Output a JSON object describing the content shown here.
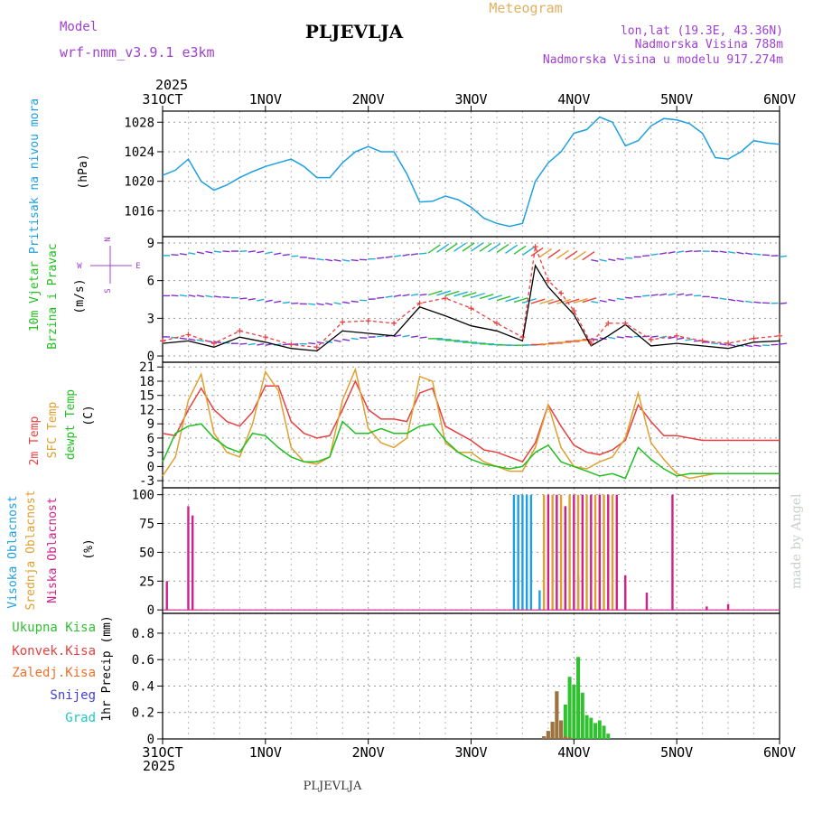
{
  "header": {
    "model_label": "Model",
    "model_name": "wrf-nmm_v3.9.1  e3km",
    "station": "PLJEVLJA",
    "meteogram_label": "Meteogram",
    "lonlat": "lon,lat (19.3E, 43.36N)",
    "altitude": "Nadmorska Visina 788m",
    "model_altitude": "Nadmorska Visina u modelu 917.274m",
    "footer_station": "PLJEVLJA",
    "credit": "made by Angel"
  },
  "colors": {
    "pressure": "#1ea0e0",
    "temp2m": "#e84040",
    "sfc": "#e0a030",
    "dewpt": "#20c020",
    "high": "#1ea0e0",
    "mid": "#e0a030",
    "low": "#d0208a",
    "precip_total": "#30c030",
    "precip_conv": "#e84040",
    "precip_frz": "#f07028",
    "snow": "#4040d8",
    "grad": "#20c8c8",
    "purple": "#a040d0",
    "wind_bar": "#000000"
  },
  "time_axis": {
    "year_top": "2025",
    "year_bottom": "2025",
    "labels": [
      "31OCT",
      "1NOV",
      "2NOV",
      "3NOV",
      "4NOV",
      "5NOV",
      "6NOV"
    ]
  },
  "compass": {
    "n": "N",
    "s": "S",
    "w": "W",
    "e": "E"
  },
  "chart_data": [
    {
      "name": "pressure",
      "type": "line",
      "ylabel": "Pritisak na nivou mora",
      "unit": "(hPa)",
      "ylim": [
        1012.5,
        1029.5
      ],
      "yticks": [
        1016,
        1020,
        1024,
        1028
      ],
      "x": [
        0,
        3,
        6,
        9,
        12,
        15,
        18,
        21,
        24,
        27,
        30,
        33,
        36,
        39,
        42,
        45,
        48,
        51,
        54,
        57,
        60,
        63,
        66,
        69,
        72,
        75,
        78,
        81,
        84,
        87,
        90,
        93,
        96,
        99,
        102,
        105,
        108,
        111,
        114,
        117,
        120,
        123,
        126,
        129,
        132,
        135,
        138,
        141,
        144
      ],
      "values": [
        1020.8,
        1021.5,
        1023.0,
        1020.0,
        1018.8,
        1019.5,
        1020.5,
        1021.3,
        1022.0,
        1022.5,
        1023.0,
        1022.0,
        1020.5,
        1020.5,
        1022.5,
        1024.0,
        1024.7,
        1024.0,
        1024.0,
        1021.0,
        1017.2,
        1017.3,
        1018.0,
        1017.5,
        1016.5,
        1015.0,
        1014.3,
        1013.9,
        1014.3,
        1020.0,
        1022.5,
        1024.0,
        1026.5,
        1027.0,
        1028.7,
        1028.0,
        1024.8,
        1025.5,
        1027.5,
        1028.5,
        1028.3,
        1027.8,
        1026.5,
        1023.2,
        1023.0,
        1024.0,
        1025.5,
        1025.2,
        1025.0
      ]
    },
    {
      "name": "wind",
      "type": "line",
      "ylabel": "10m Vjetar",
      "ylabel2": "Brzina i Pravac",
      "unit": "(m/s)",
      "ylim": [
        -0.5,
        9.5
      ],
      "yticks": [
        0,
        3,
        6,
        9
      ],
      "x": [
        0,
        6,
        12,
        18,
        24,
        30,
        36,
        42,
        48,
        54,
        60,
        66,
        72,
        78,
        84,
        87,
        90,
        93,
        96,
        100,
        104,
        108,
        114,
        120,
        126,
        132,
        138,
        144
      ],
      "speed": [
        1.0,
        1.2,
        0.7,
        1.5,
        1.1,
        0.6,
        0.4,
        2.0,
        1.8,
        1.6,
        3.9,
        3.2,
        2.4,
        2.0,
        1.2,
        7.2,
        5.5,
        4.4,
        3.3,
        0.8,
        1.6,
        2.5,
        0.8,
        1.0,
        0.8,
        0.6,
        1.1,
        1.2
      ],
      "gust": [
        1.2,
        1.7,
        1.0,
        2.0,
        1.5,
        0.9,
        0.7,
        2.7,
        2.8,
        2.6,
        4.2,
        4.6,
        3.8,
        2.6,
        1.5,
        8.7,
        6.0,
        5.0,
        3.6,
        1.0,
        2.6,
        2.6,
        1.3,
        1.6,
        1.2,
        1.0,
        1.4,
        1.6
      ]
    },
    {
      "name": "temperature",
      "type": "line",
      "ylabel": "2m Temp",
      "ylabel2": "SFC Temp",
      "ylabel3": "dewpt Temp",
      "unit": "(C)",
      "ylim": [
        -4.5,
        22
      ],
      "yticks": [
        -3,
        0,
        3,
        6,
        9,
        12,
        15,
        18,
        21
      ],
      "x": [
        0,
        3,
        6,
        9,
        12,
        15,
        18,
        21,
        24,
        27,
        30,
        33,
        36,
        39,
        42,
        45,
        48,
        51,
        54,
        57,
        60,
        63,
        66,
        69,
        72,
        75,
        78,
        81,
        84,
        87,
        90,
        93,
        96,
        99,
        102,
        105,
        108,
        111,
        114,
        117,
        120,
        123,
        126,
        129,
        132,
        135,
        138,
        141,
        144
      ],
      "series": [
        {
          "name": "2m Temp",
          "values": [
            7.0,
            6.5,
            12.0,
            16.5,
            12.0,
            9.5,
            8.5,
            11.5,
            17.0,
            17.0,
            9.5,
            7.0,
            6.0,
            6.5,
            12.0,
            18.0,
            12.0,
            10.0,
            10.0,
            9.5,
            15.5,
            16.5,
            8.5,
            7.0,
            5.5,
            3.5,
            3.0,
            2.0,
            1.0,
            5.0,
            13.0,
            8.5,
            4.5,
            3.0,
            2.5,
            3.5,
            5.5,
            13.0,
            9.5,
            6.5,
            6.5,
            6.0,
            5.5,
            5.5,
            5.5,
            5.5,
            5.5,
            5.5,
            5.5
          ]
        },
        {
          "name": "SFC Temp",
          "values": [
            -2.0,
            2.0,
            14.0,
            19.5,
            7.0,
            3.0,
            2.0,
            9.0,
            20.0,
            16.0,
            4.0,
            1.0,
            0.5,
            2.0,
            14.0,
            20.5,
            8.0,
            5.0,
            4.0,
            6.0,
            19.0,
            18.0,
            5.0,
            3.0,
            3.0,
            1.0,
            0.0,
            -1.0,
            -1.0,
            4.0,
            13.0,
            4.0,
            0.0,
            -0.5,
            1.0,
            2.0,
            6.0,
            15.5,
            5.0,
            1.5,
            -1.5,
            -2.5,
            -2.0,
            -1.5,
            -1.5,
            -1.5,
            -1.5,
            -1.5,
            -1.5
          ]
        },
        {
          "name": "dewpt Temp",
          "values": [
            1.0,
            7.0,
            8.5,
            9.0,
            6.0,
            4.0,
            3.0,
            7.0,
            6.5,
            4.0,
            2.0,
            1.0,
            1.0,
            2.0,
            9.5,
            7.0,
            7.0,
            8.0,
            7.0,
            7.0,
            8.5,
            9.0,
            5.5,
            3.0,
            1.5,
            0.5,
            0.0,
            -0.5,
            0.0,
            3.0,
            4.5,
            1.0,
            0.0,
            -1.0,
            -2.0,
            -1.5,
            -2.5,
            4.0,
            1.5,
            -0.5,
            -2.0,
            -1.5,
            -1.5,
            -1.5,
            -1.5,
            -1.5,
            -1.5,
            -1.5,
            -1.5
          ]
        }
      ]
    },
    {
      "name": "cloud",
      "type": "bar",
      "ylabel": "Visoka Oblacnost",
      "ylabel2": "Srednja Oblacnost",
      "ylabel3": "Niska Oblacnost",
      "unit": "(%)",
      "ylim": [
        -3,
        106
      ],
      "yticks": [
        0,
        25,
        50,
        75,
        100
      ],
      "series": [
        {
          "name": "Visoka Oblacnost",
          "x": [
            82,
            83,
            84,
            85,
            86,
            88,
            94,
            97,
            100
          ],
          "values": [
            100,
            100,
            100,
            100,
            100,
            17,
            90,
            30,
            5
          ]
        },
        {
          "name": "Srednja Oblacnost",
          "x": [
            89,
            91,
            93,
            95,
            97,
            99,
            101,
            103,
            105
          ],
          "values": [
            100,
            100,
            100,
            100,
            100,
            100,
            100,
            100,
            100
          ]
        },
        {
          "name": "Niska Oblacnost",
          "x": [
            1,
            6,
            7,
            90,
            92,
            94,
            96,
            98,
            100,
            102,
            104,
            106,
            108,
            113,
            119,
            127,
            132
          ],
          "values": [
            25,
            90,
            82,
            100,
            100,
            90,
            100,
            100,
            100,
            100,
            100,
            100,
            30,
            15,
            100,
            3,
            5
          ]
        }
      ]
    },
    {
      "name": "precip",
      "type": "bar",
      "ylabel": "1hr Precip",
      "unit": "(mm)",
      "ylim": [
        0,
        0.95
      ],
      "yticks": [
        0,
        0.2,
        0.4,
        0.6,
        0.8
      ],
      "legend": [
        "Ukupna Kisa",
        "Konvek.Kisa",
        "Zaledj.Kisa",
        "Snijeg",
        "Grad"
      ],
      "series": [
        {
          "name": "Ukupna Kisa",
          "x": [
            89,
            90,
            91,
            92,
            93,
            94,
            95,
            96,
            97,
            98,
            99,
            100,
            101,
            102,
            103,
            104
          ],
          "values": [
            0.02,
            0.06,
            0.13,
            0.36,
            0.14,
            0.26,
            0.47,
            0.41,
            0.62,
            0.35,
            0.18,
            0.16,
            0.12,
            0.14,
            0.1,
            0.04
          ]
        },
        {
          "name": "Konvek.Kisa",
          "x": [
            89,
            90,
            91,
            92,
            93,
            94,
            95
          ],
          "values": [
            0.02,
            0.06,
            0.13,
            0.36,
            0.14,
            0.02,
            0.01
          ]
        }
      ]
    }
  ]
}
